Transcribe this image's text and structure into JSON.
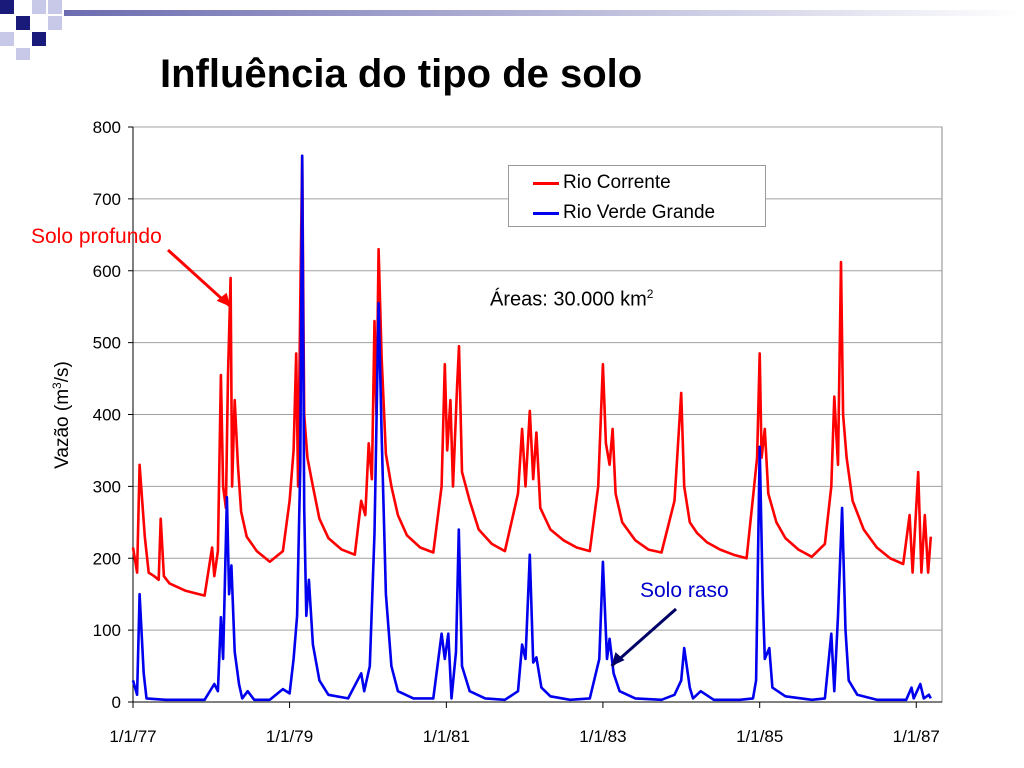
{
  "slide": {
    "title": "Influência do tipo de solo",
    "deco_colors": [
      "#1a1a7a",
      "#c8c8e8",
      "#6c6cb0"
    ]
  },
  "chart_data": {
    "type": "line",
    "title": "",
    "xlabel": "",
    "ylabel": "Vazão (m",
    "ylabel_sup": "3",
    "ylabel_end": "/s)",
    "ylim": [
      0,
      800
    ],
    "yticks": [
      "0",
      "100",
      "200",
      "300",
      "400",
      "500",
      "600",
      "700",
      "800"
    ],
    "x_range": [
      "1977-01-01",
      "1987-05-01"
    ],
    "xticks": [
      {
        "date": "1977-01-01",
        "label": "1/1/77"
      },
      {
        "date": "1979-01-01",
        "label": "1/1/79"
      },
      {
        "date": "1981-01-01",
        "label": "1/1/81"
      },
      {
        "date": "1983-01-01",
        "label": "1/1/83"
      },
      {
        "date": "1985-01-01",
        "label": "1/1/85"
      },
      {
        "date": "1987-01-01",
        "label": "1/1/87"
      }
    ],
    "grid": "horizontal",
    "legend_position": "top-right",
    "series": [
      {
        "name": "Rio Corrente",
        "color": "#ff0000",
        "points": [
          [
            "1977-01-01",
            215
          ],
          [
            "1977-01-20",
            180
          ],
          [
            "1977-02-01",
            330
          ],
          [
            "1977-02-25",
            230
          ],
          [
            "1977-03-15",
            180
          ],
          [
            "1977-04-10",
            175
          ],
          [
            "1977-05-01",
            170
          ],
          [
            "1977-05-10",
            255
          ],
          [
            "1977-05-25",
            175
          ],
          [
            "1977-06-20",
            165
          ],
          [
            "1977-09-01",
            155
          ],
          [
            "1977-12-01",
            148
          ],
          [
            "1978-01-05",
            215
          ],
          [
            "1978-01-15",
            175
          ],
          [
            "1978-02-01",
            210
          ],
          [
            "1978-02-15",
            455
          ],
          [
            "1978-02-25",
            300
          ],
          [
            "1978-03-10",
            270
          ],
          [
            "1978-03-20",
            455
          ],
          [
            "1978-04-01",
            590
          ],
          [
            "1978-04-08",
            300
          ],
          [
            "1978-04-20",
            420
          ],
          [
            "1978-05-05",
            330
          ],
          [
            "1978-05-20",
            265
          ],
          [
            "1978-06-15",
            230
          ],
          [
            "1978-08-01",
            210
          ],
          [
            "1978-10-01",
            195
          ],
          [
            "1978-12-01",
            210
          ],
          [
            "1979-01-01",
            280
          ],
          [
            "1979-01-20",
            350
          ],
          [
            "1979-02-01",
            485
          ],
          [
            "1979-02-10",
            300
          ],
          [
            "1979-02-20",
            560
          ],
          [
            "1979-03-01",
            760
          ],
          [
            "1979-03-10",
            400
          ],
          [
            "1979-03-25",
            340
          ],
          [
            "1979-04-20",
            300
          ],
          [
            "1979-05-20",
            255
          ],
          [
            "1979-07-01",
            228
          ],
          [
            "1979-09-01",
            212
          ],
          [
            "1979-11-01",
            205
          ],
          [
            "1979-12-01",
            280
          ],
          [
            "1979-12-20",
            260
          ],
          [
            "1980-01-05",
            360
          ],
          [
            "1980-01-20",
            310
          ],
          [
            "1980-02-01",
            530
          ],
          [
            "1980-02-10",
            400
          ],
          [
            "1980-02-20",
            630
          ],
          [
            "1980-03-05",
            480
          ],
          [
            "1980-03-25",
            345
          ],
          [
            "1980-04-20",
            300
          ],
          [
            "1980-05-20",
            260
          ],
          [
            "1980-07-01",
            232
          ],
          [
            "1980-09-01",
            215
          ],
          [
            "1980-11-01",
            208
          ],
          [
            "1980-12-10",
            300
          ],
          [
            "1980-12-25",
            470
          ],
          [
            "1981-01-05",
            350
          ],
          [
            "1981-01-20",
            420
          ],
          [
            "1981-02-01",
            300
          ],
          [
            "1981-02-20",
            440
          ],
          [
            "1981-03-01",
            495
          ],
          [
            "1981-03-15",
            320
          ],
          [
            "1981-04-20",
            280
          ],
          [
            "1981-06-01",
            240
          ],
          [
            "1981-08-01",
            220
          ],
          [
            "1981-10-01",
            210
          ],
          [
            "1981-12-01",
            290
          ],
          [
            "1981-12-20",
            380
          ],
          [
            "1982-01-05",
            300
          ],
          [
            "1982-01-25",
            405
          ],
          [
            "1982-02-10",
            310
          ],
          [
            "1982-02-25",
            375
          ],
          [
            "1982-03-15",
            270
          ],
          [
            "1982-05-01",
            240
          ],
          [
            "1982-07-01",
            225
          ],
          [
            "1982-09-01",
            215
          ],
          [
            "1982-11-01",
            210
          ],
          [
            "1982-12-10",
            300
          ],
          [
            "1983-01-01",
            470
          ],
          [
            "1983-01-15",
            360
          ],
          [
            "1983-02-01",
            330
          ],
          [
            "1983-02-15",
            380
          ],
          [
            "1983-03-01",
            290
          ],
          [
            "1983-04-01",
            250
          ],
          [
            "1983-06-01",
            225
          ],
          [
            "1983-08-01",
            212
          ],
          [
            "1983-10-01",
            208
          ],
          [
            "1983-12-01",
            280
          ],
          [
            "1984-01-01",
            430
          ],
          [
            "1984-01-15",
            300
          ],
          [
            "1984-02-10",
            250
          ],
          [
            "1984-03-15",
            235
          ],
          [
            "1984-05-01",
            222
          ],
          [
            "1984-07-01",
            212
          ],
          [
            "1984-09-01",
            205
          ],
          [
            "1984-11-01",
            200
          ],
          [
            "1984-12-01",
            285
          ],
          [
            "1984-12-20",
            340
          ],
          [
            "1985-01-01",
            485
          ],
          [
            "1985-01-10",
            340
          ],
          [
            "1985-01-25",
            380
          ],
          [
            "1985-02-10",
            290
          ],
          [
            "1985-03-20",
            250
          ],
          [
            "1985-05-01",
            228
          ],
          [
            "1985-07-01",
            212
          ],
          [
            "1985-09-01",
            202
          ],
          [
            "1985-11-01",
            220
          ],
          [
            "1985-12-01",
            300
          ],
          [
            "1985-12-15",
            425
          ],
          [
            "1986-01-01",
            330
          ],
          [
            "1986-01-15",
            612
          ],
          [
            "1986-01-25",
            400
          ],
          [
            "1986-02-10",
            340
          ],
          [
            "1986-03-10",
            280
          ],
          [
            "1986-05-01",
            240
          ],
          [
            "1986-07-01",
            215
          ],
          [
            "1986-09-01",
            200
          ],
          [
            "1986-11-01",
            192
          ],
          [
            "1986-12-01",
            260
          ],
          [
            "1986-12-15",
            180
          ],
          [
            "1987-01-10",
            320
          ],
          [
            "1987-01-25",
            180
          ],
          [
            "1987-02-10",
            260
          ],
          [
            "1987-02-25",
            180
          ],
          [
            "1987-03-10",
            230
          ]
        ]
      },
      {
        "name": "Rio Verde Grande",
        "color": "#0000ee",
        "points": [
          [
            "1977-01-01",
            30
          ],
          [
            "1977-01-20",
            10
          ],
          [
            "1977-02-01",
            150
          ],
          [
            "1977-02-20",
            40
          ],
          [
            "1977-03-05",
            5
          ],
          [
            "1977-06-01",
            3
          ],
          [
            "1977-12-01",
            3
          ],
          [
            "1978-01-15",
            25
          ],
          [
            "1978-02-01",
            15
          ],
          [
            "1978-02-15",
            118
          ],
          [
            "1978-02-25",
            60
          ],
          [
            "1978-03-15",
            285
          ],
          [
            "1978-03-25",
            150
          ],
          [
            "1978-04-05",
            190
          ],
          [
            "1978-04-20",
            70
          ],
          [
            "1978-05-10",
            25
          ],
          [
            "1978-05-25",
            5
          ],
          [
            "1978-06-20",
            15
          ],
          [
            "1978-07-20",
            3
          ],
          [
            "1978-10-01",
            3
          ],
          [
            "1978-12-01",
            18
          ],
          [
            "1979-01-01",
            12
          ],
          [
            "1979-01-20",
            60
          ],
          [
            "1979-02-05",
            120
          ],
          [
            "1979-02-20",
            330
          ],
          [
            "1979-03-01",
            760
          ],
          [
            "1979-03-10",
            270
          ],
          [
            "1979-03-20",
            120
          ],
          [
            "1979-04-01",
            170
          ],
          [
            "1979-04-20",
            80
          ],
          [
            "1979-05-20",
            30
          ],
          [
            "1979-07-01",
            10
          ],
          [
            "1979-10-01",
            5
          ],
          [
            "1979-12-01",
            40
          ],
          [
            "1979-12-15",
            15
          ],
          [
            "1980-01-10",
            50
          ],
          [
            "1980-02-01",
            235
          ],
          [
            "1980-02-20",
            555
          ],
          [
            "1980-03-05",
            375
          ],
          [
            "1980-03-25",
            150
          ],
          [
            "1980-04-20",
            50
          ],
          [
            "1980-05-20",
            15
          ],
          [
            "1980-08-01",
            5
          ],
          [
            "1980-11-01",
            5
          ],
          [
            "1980-12-10",
            95
          ],
          [
            "1980-12-25",
            60
          ],
          [
            "1981-01-10",
            95
          ],
          [
            "1981-01-25",
            5
          ],
          [
            "1981-02-15",
            70
          ],
          [
            "1981-02-28",
            240
          ],
          [
            "1981-03-15",
            50
          ],
          [
            "1981-04-20",
            15
          ],
          [
            "1981-07-01",
            5
          ],
          [
            "1981-10-01",
            3
          ],
          [
            "1981-12-01",
            15
          ],
          [
            "1981-12-20",
            80
          ],
          [
            "1982-01-05",
            60
          ],
          [
            "1982-01-25",
            205
          ],
          [
            "1982-02-10",
            55
          ],
          [
            "1982-02-25",
            62
          ],
          [
            "1982-03-20",
            20
          ],
          [
            "1982-05-01",
            8
          ],
          [
            "1982-08-01",
            3
          ],
          [
            "1982-11-01",
            5
          ],
          [
            "1982-12-15",
            60
          ],
          [
            "1983-01-01",
            195
          ],
          [
            "1983-01-20",
            60
          ],
          [
            "1983-02-01",
            88
          ],
          [
            "1983-02-20",
            40
          ],
          [
            "1983-03-20",
            15
          ],
          [
            "1983-06-01",
            5
          ],
          [
            "1983-10-01",
            3
          ],
          [
            "1983-12-01",
            10
          ],
          [
            "1984-01-01",
            30
          ],
          [
            "1984-01-15",
            75
          ],
          [
            "1984-02-10",
            20
          ],
          [
            "1984-02-25",
            5
          ],
          [
            "1984-04-01",
            15
          ],
          [
            "1984-06-01",
            3
          ],
          [
            "1984-10-01",
            3
          ],
          [
            "1984-12-01",
            5
          ],
          [
            "1984-12-15",
            30
          ],
          [
            "1985-01-01",
            355
          ],
          [
            "1985-01-15",
            150
          ],
          [
            "1985-01-25",
            60
          ],
          [
            "1985-02-15",
            75
          ],
          [
            "1985-03-01",
            20
          ],
          [
            "1985-05-01",
            8
          ],
          [
            "1985-09-01",
            3
          ],
          [
            "1985-11-01",
            5
          ],
          [
            "1985-12-01",
            95
          ],
          [
            "1985-12-15",
            15
          ],
          [
            "1986-01-01",
            120
          ],
          [
            "1986-01-20",
            270
          ],
          [
            "1986-02-05",
            100
          ],
          [
            "1986-02-20",
            30
          ],
          [
            "1986-04-01",
            10
          ],
          [
            "1986-07-01",
            3
          ],
          [
            "1986-10-01",
            3
          ],
          [
            "1986-11-15",
            3
          ],
          [
            "1986-12-10",
            20
          ],
          [
            "1986-12-20",
            5
          ],
          [
            "1987-01-20",
            25
          ],
          [
            "1987-02-05",
            5
          ],
          [
            "1987-03-01",
            10
          ],
          [
            "1987-03-10",
            5
          ]
        ]
      }
    ],
    "annotations": {
      "solo_profundo": {
        "text": "Solo profundo",
        "color": "#ff0000",
        "target": [
          "1978-04-01",
          550
        ]
      },
      "solo_raso": {
        "text": "Solo raso",
        "color": "#0000cc",
        "target": [
          "1983-02-10",
          50
        ]
      },
      "areas": {
        "text": "Áreas: 30.000 km",
        "sup": "2"
      }
    }
  }
}
